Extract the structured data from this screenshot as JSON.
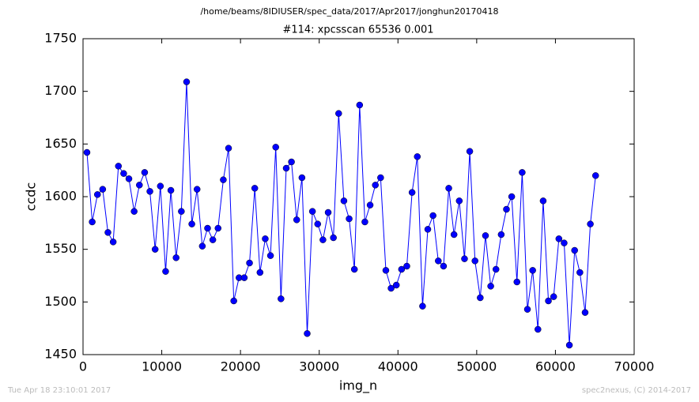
{
  "chart_data": {
    "type": "line",
    "title": "/home/beams/8IDIUSER/spec_data/2017/Apr2017/jonghun20170418",
    "subtitle": "#114: xpcsscan 65536 0.001",
    "xlabel": "img_n",
    "ylabel": "ccdc",
    "x": [
      500,
      1166,
      1832,
      2498,
      3164,
      3830,
      4496,
      5162,
      5828,
      6494,
      7160,
      7826,
      8492,
      9158,
      9824,
      10490,
      11156,
      11822,
      12488,
      13154,
      13820,
      14486,
      15152,
      15818,
      16484,
      17150,
      17816,
      18482,
      19148,
      19814,
      20480,
      21146,
      21812,
      22478,
      23144,
      23810,
      24476,
      25142,
      25808,
      26474,
      27140,
      27806,
      28472,
      29138,
      29804,
      30470,
      31136,
      31802,
      32468,
      33134,
      33800,
      34466,
      35132,
      35798,
      36464,
      37130,
      37796,
      38462,
      39128,
      39794,
      40460,
      41126,
      41792,
      42458,
      43124,
      43790,
      44456,
      45122,
      45788,
      46454,
      47120,
      47786,
      48452,
      49118,
      49784,
      50450,
      51116,
      51782,
      52448,
      53114,
      53780,
      54446,
      55112,
      55778,
      56444,
      57110,
      57776,
      58442,
      59108,
      59774,
      60440,
      61106,
      61772,
      62438,
      63104,
      63770,
      64436,
      65102
    ],
    "series": [
      {
        "name": "ccdc",
        "color": "#0000ff",
        "values": [
          1642,
          1576,
          1602,
          1607,
          1566,
          1557,
          1629,
          1622,
          1617,
          1586,
          1611,
          1623,
          1605,
          1550,
          1610,
          1529,
          1606,
          1542,
          1586,
          1709,
          1574,
          1607,
          1553,
          1570,
          1559,
          1570,
          1616,
          1646,
          1501,
          1523,
          1523,
          1537,
          1608,
          1528,
          1560,
          1544,
          1647,
          1503,
          1627,
          1633,
          1578,
          1618,
          1470,
          1586,
          1574,
          1559,
          1585,
          1561,
          1679,
          1596,
          1579,
          1531,
          1687,
          1576,
          1592,
          1611,
          1618,
          1530,
          1513,
          1516,
          1531,
          1534,
          1604,
          1638,
          1496,
          1569,
          1582,
          1539,
          1534,
          1608,
          1564,
          1596,
          1541,
          1643,
          1539,
          1504,
          1563,
          1515,
          1531,
          1564,
          1588,
          1600,
          1519,
          1623,
          1493,
          1530,
          1474,
          1596,
          1501,
          1505,
          1560,
          1556,
          1459,
          1549,
          1528,
          1490,
          1574,
          1620
        ]
      }
    ],
    "xlim": [
      0,
      70000
    ],
    "xticks": [
      0,
      10000,
      20000,
      30000,
      40000,
      50000,
      60000,
      70000
    ],
    "ylim": [
      1450,
      1750
    ],
    "yticks": [
      1450,
      1500,
      1550,
      1600,
      1650,
      1700,
      1750
    ],
    "grid": false
  },
  "footer": {
    "left": "Tue Apr 18 23:10:01 2017",
    "right": "spec2nexus, (C) 2014-2017"
  }
}
